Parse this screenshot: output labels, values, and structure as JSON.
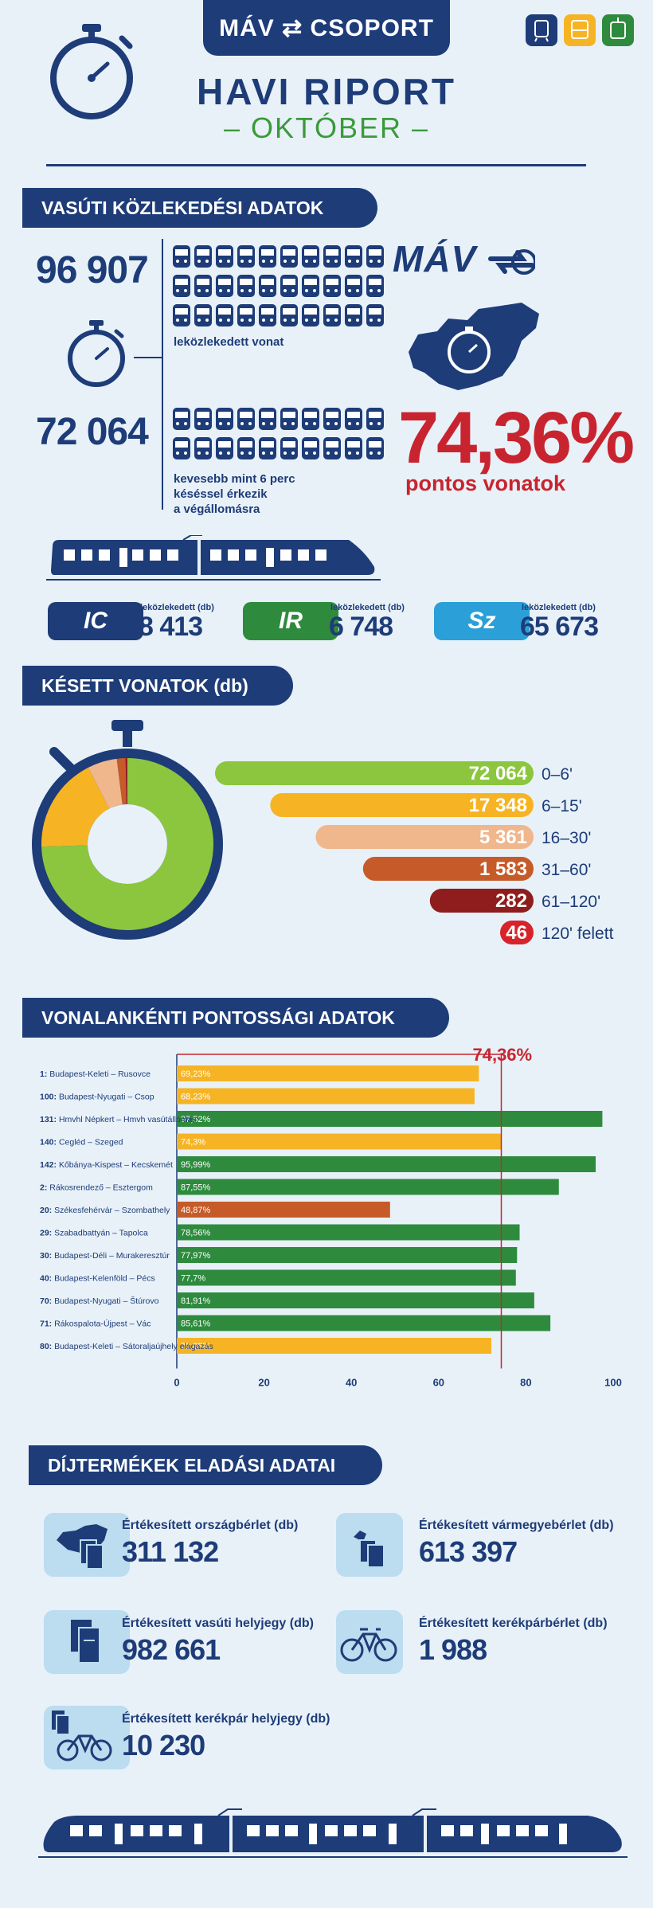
{
  "header": {
    "brand": "MÁV ⇄ CSOPORT",
    "title": "HAVI RIPORT",
    "subtitle": "– OKTÓBER –",
    "mode_icons": [
      {
        "name": "train-icon",
        "color": "#1d3c78"
      },
      {
        "name": "bus-icon",
        "color": "#f6b425"
      },
      {
        "name": "tram-icon",
        "color": "#2e8b3e"
      }
    ]
  },
  "section1": {
    "heading": "VASÚTI KÖZLEKEDÉSI ADATOK",
    "trains_run": "96 907",
    "trains_run_label": "leközlekedett vonat",
    "on_time": "72 064",
    "on_time_label": [
      "kevesebb mint 6 perc",
      "késéssel érkezik",
      "a végállomásra"
    ],
    "mav_logo": "MÁV",
    "punctuality_pct": "74,36%",
    "punctuality_label": "pontos vonatok",
    "categories": [
      {
        "badge": "IC",
        "label": "leközlekedett (db)",
        "value": "8 413",
        "color": "#1d3c78"
      },
      {
        "badge": "IR",
        "label": "leközlekedett (db)",
        "value": "6 748",
        "color": "#2e8b3e"
      },
      {
        "badge": "Sz",
        "label": "leközlekedett (db)",
        "value": "65 673",
        "color": "#2a9fd8"
      }
    ]
  },
  "section2": {
    "heading": "KÉSETT VONATOK (db)"
  },
  "section3": {
    "heading": "VONALANKÉNTI PONTOSSÁGI ADATOK"
  },
  "section4": {
    "heading": "DÍJTERMÉKEK ELADÁSI ADATAI",
    "items": [
      {
        "label": "Értékesített országbérlet (db)",
        "value": "311 132",
        "icon": "hungary-pass-icon"
      },
      {
        "label": "Értékesített vármegyebérlet (db)",
        "value": "613 397",
        "icon": "county-pass-icon"
      },
      {
        "label": "Értékesített vasúti helyjegy (db)",
        "value": "982 661",
        "icon": "seat-ticket-icon"
      },
      {
        "label": "Értékesített kerékpárbérlet (db)",
        "value": "1 988",
        "icon": "bicycle-icon"
      },
      {
        "label": "Értékesített kerékpár helyjegy (db)",
        "value": "10 230",
        "icon": "bicycle-ticket-icon"
      }
    ]
  },
  "chart_data": [
    {
      "type": "bar",
      "title": "KÉSETT VONATOK (db)",
      "categories": [
        "0–6'",
        "6–15'",
        "16–30'",
        "31–60'",
        "61–120'",
        "120' felett"
      ],
      "values": [
        72064,
        17348,
        5361,
        1583,
        282,
        46
      ],
      "value_labels": [
        "72 064",
        "17 348",
        "5 361",
        "1 583",
        "282",
        "46"
      ],
      "colors": [
        "#8cc63f",
        "#f6b425",
        "#f0b68c",
        "#c65a28",
        "#8f1d1d",
        "#d8232a"
      ]
    },
    {
      "type": "bar",
      "title": "VONALANKÉNTI PONTOSSÁGI ADATOK",
      "categories": [
        "1: Budapest-Keleti – Rusovce",
        "100: Budapest-Nyugati – Csop",
        "131: Hmvhl Népkert – Hmvh vasútállomás",
        "140: Cegléd – Szeged",
        "142: Kőbánya-Kispest – Kecskemét",
        "2: Rákosrendező – Esztergom",
        "20: Székesfehérvár – Szombathely",
        "29: Szabadbattyán – Tapolca",
        "30: Budapest-Déli – Murakeresztúr",
        "40: Budapest-Kelenföld – Pécs",
        "70: Budapest-Nyugati – Štúrovo",
        "71: Rákospalota-Újpest – Vác",
        "80: Budapest-Keleti – Sátoraljaújhely elágazás"
      ],
      "values": [
        69.23,
        68.23,
        97.52,
        74.3,
        95.99,
        87.55,
        48.87,
        78.56,
        77.97,
        77.7,
        81.91,
        85.61,
        72.08
      ],
      "value_labels": [
        "69,23%",
        "68,23%",
        "97,52%",
        "74,3%",
        "95,99%",
        "87,55%",
        "48,87%",
        "78,56%",
        "77,97%",
        "77,7%",
        "81,91%",
        "85,61%",
        "72,08%"
      ],
      "colors": [
        "#f6b425",
        "#f6b425",
        "#2e8b3e",
        "#f6b425",
        "#2e8b3e",
        "#2e8b3e",
        "#c65a28",
        "#2e8b3e",
        "#2e8b3e",
        "#2e8b3e",
        "#2e8b3e",
        "#2e8b3e",
        "#f6b425"
      ],
      "reference_line": 74.36,
      "reference_label": "74,36%",
      "xlim": [
        0,
        100
      ],
      "xticks": [
        0,
        20,
        40,
        60,
        80,
        100
      ]
    }
  ]
}
